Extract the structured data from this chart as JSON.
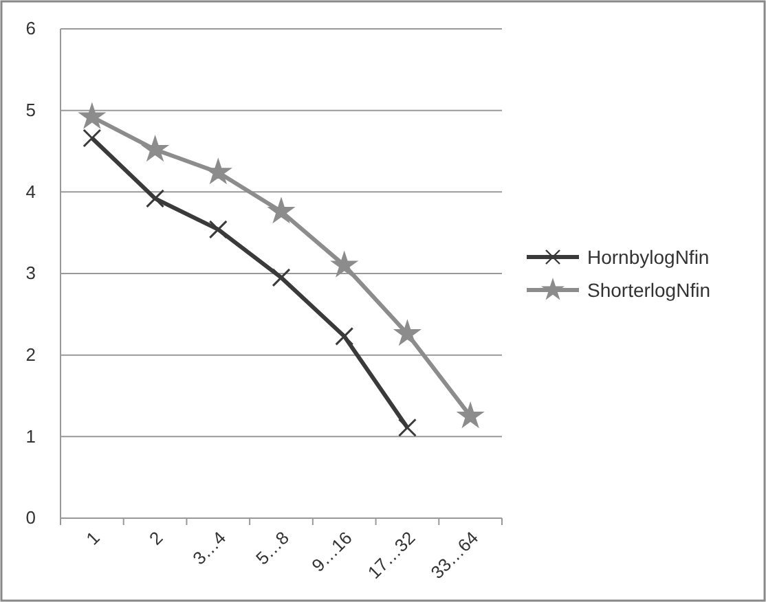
{
  "chart_data": {
    "type": "line",
    "categories": [
      "1",
      "2",
      "3…4",
      "5…8",
      "9…16",
      "17…32",
      "33…64"
    ],
    "series": [
      {
        "name": "HornbylogNfin",
        "color": "#3a3a3a",
        "marker": "cross",
        "values": [
          4.66,
          3.92,
          3.54,
          2.95,
          2.23,
          1.11,
          null
        ]
      },
      {
        "name": "ShorterlogNfin",
        "color": "#8c8c8c",
        "marker": "star",
        "values": [
          4.92,
          4.52,
          4.24,
          3.76,
          3.1,
          2.26,
          1.25
        ]
      }
    ],
    "ylim": [
      0,
      6
    ],
    "yticks": [
      0,
      1,
      2,
      3,
      4,
      5,
      6
    ],
    "grid": "y",
    "legend": "right",
    "line_style": "solid"
  }
}
